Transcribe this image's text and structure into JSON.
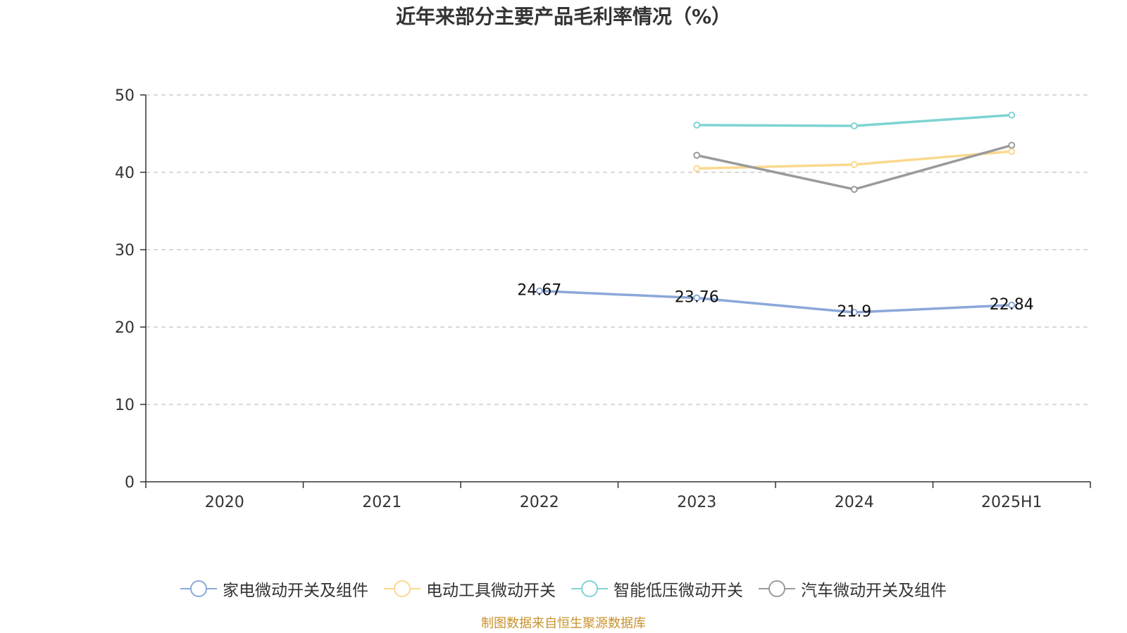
{
  "chart_data": {
    "type": "line",
    "title": "近年来部分主要产品毛利率情况（%）",
    "categories": [
      "2020",
      "2021",
      "2022",
      "2023",
      "2024",
      "2025H1"
    ],
    "ylim": [
      0,
      50
    ],
    "yticks": [
      0,
      10,
      20,
      30,
      40,
      50
    ],
    "grid": true,
    "legend_position": "bottom",
    "series": [
      {
        "name": "家电微动开关及组件",
        "color": "#8ba8d8",
        "values": [
          null,
          null,
          24.67,
          23.76,
          21.9,
          22.84
        ],
        "labels": [
          null,
          null,
          "24.67",
          "23.76",
          "21.9",
          "22.84"
        ]
      },
      {
        "name": "电动工具微动开关",
        "color": "#fbd88e",
        "values": [
          null,
          null,
          null,
          40.5,
          41.0,
          42.7
        ]
      },
      {
        "name": "智能低压微动开关",
        "color": "#7ed3d3",
        "values": [
          null,
          null,
          null,
          46.1,
          46.0,
          47.4
        ]
      },
      {
        "name": "汽车微动开关及组件",
        "color": "#9a9a9a",
        "values": [
          null,
          null,
          null,
          42.2,
          37.8,
          43.5
        ]
      }
    ]
  },
  "source": "制图数据来自恒生聚源数据库"
}
